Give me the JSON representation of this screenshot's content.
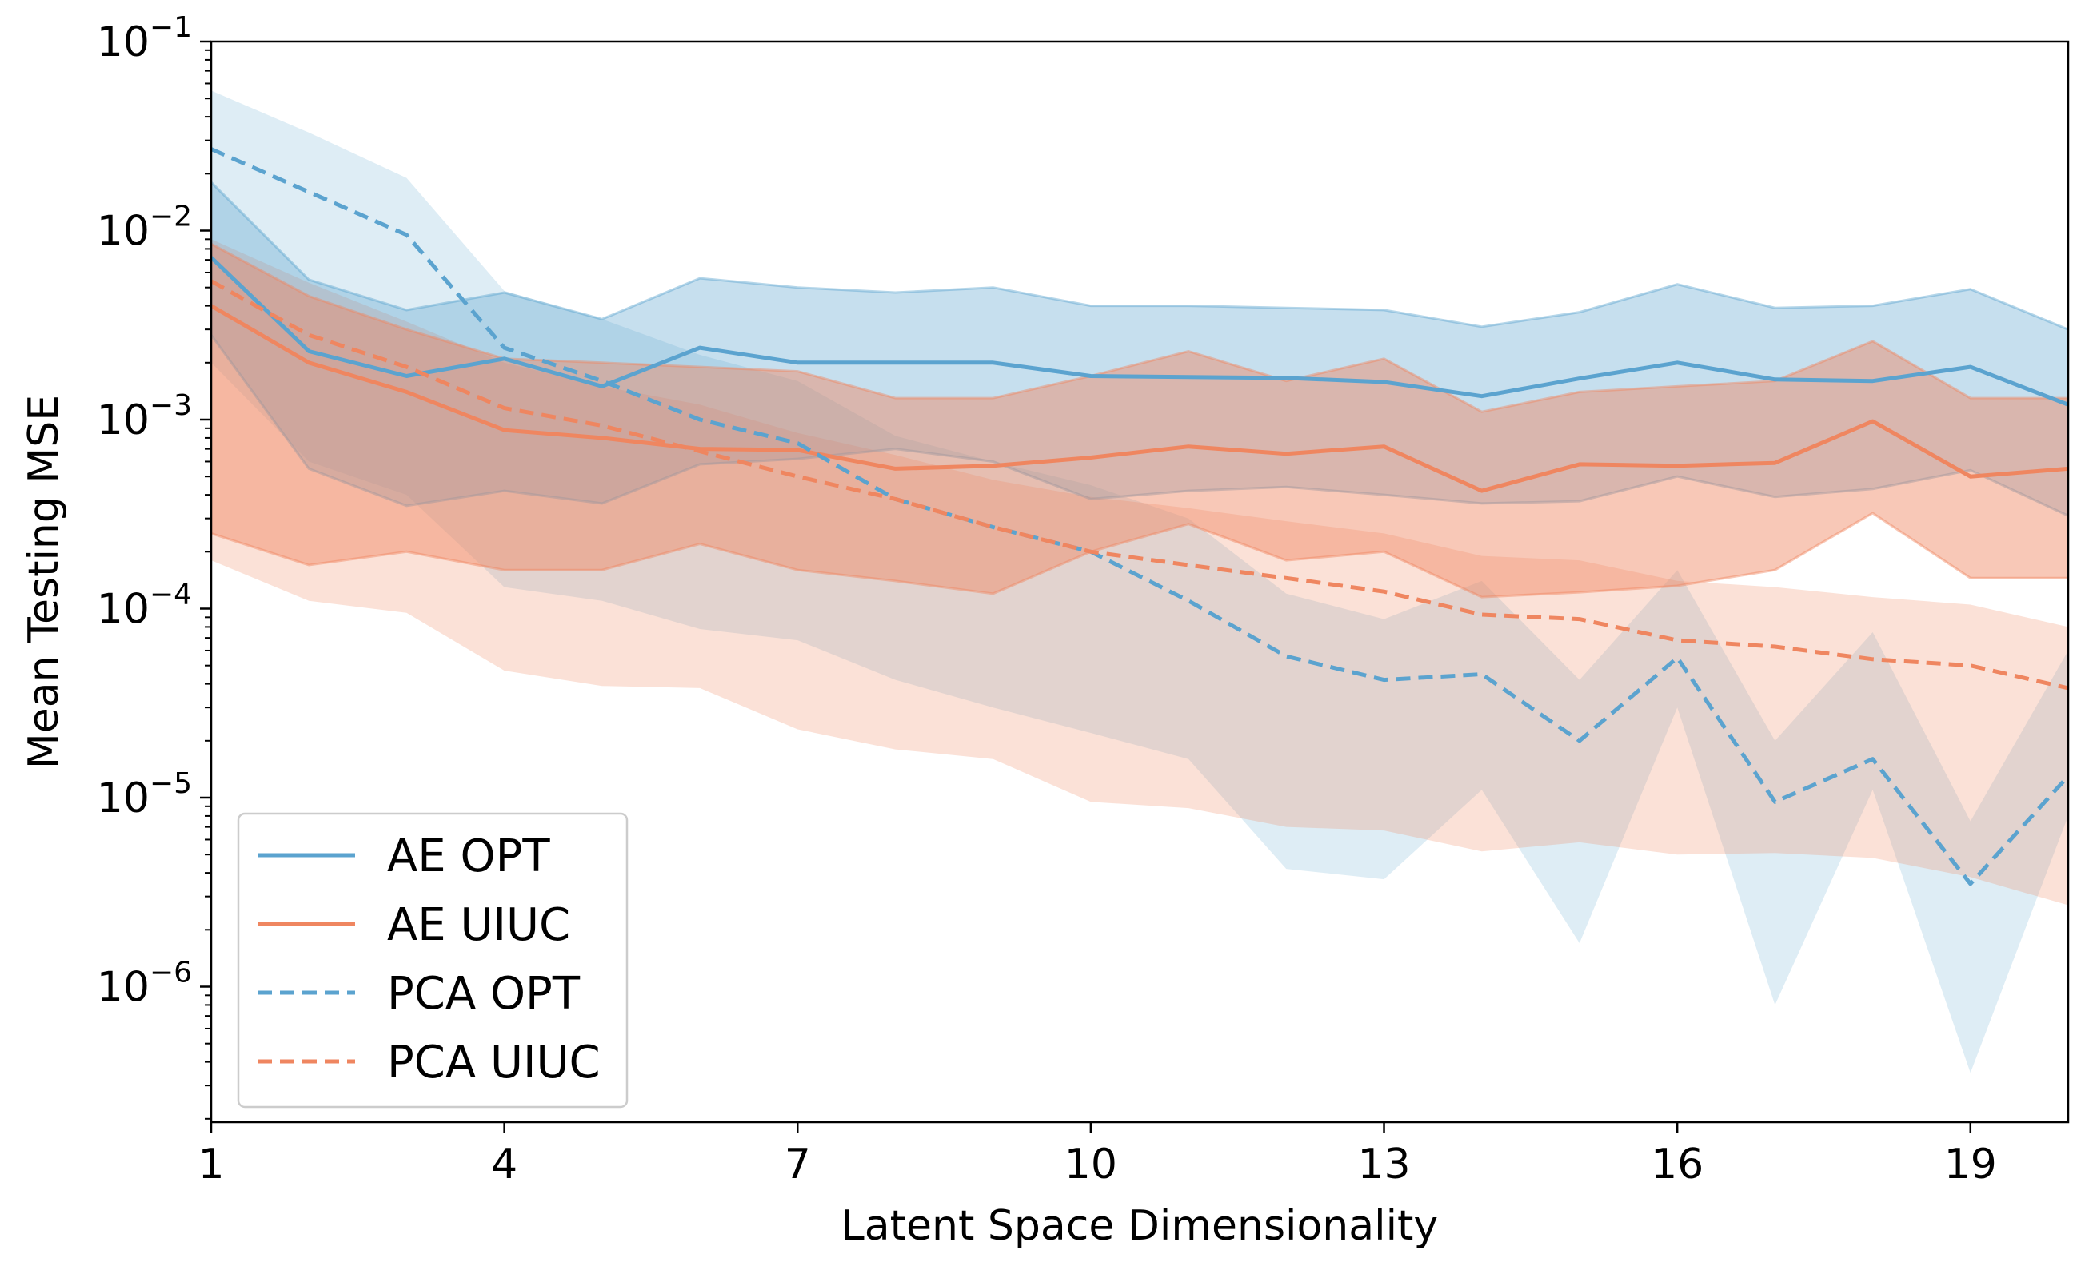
{
  "chart_data": {
    "type": "line",
    "xlabel": "Latent Space Dimensionality",
    "ylabel": "Mean Testing MSE",
    "yscale": "log",
    "xlim": [
      1,
      20
    ],
    "ylim": [
      2e-07,
      0.1
    ],
    "x_ticks": [
      1,
      4,
      7,
      10,
      13,
      16,
      19
    ],
    "y_ticks": [
      {
        "value": 1e-06,
        "base": "10",
        "exp": "−6"
      },
      {
        "value": 1e-05,
        "base": "10",
        "exp": "−5"
      },
      {
        "value": 0.0001,
        "base": "10",
        "exp": "−4"
      },
      {
        "value": 0.001,
        "base": "10",
        "exp": "−3"
      },
      {
        "value": 0.01,
        "base": "10",
        "exp": "−2"
      },
      {
        "value": 0.1,
        "base": "10",
        "exp": "−1"
      }
    ],
    "grid": false,
    "legend_position": "lower-left",
    "x": [
      1,
      2,
      3,
      4,
      5,
      6,
      7,
      8,
      9,
      10,
      11,
      12,
      13,
      14,
      15,
      16,
      17,
      18,
      19,
      20
    ],
    "series": [
      {
        "name": "AE OPT",
        "color": "#5ba3cf",
        "style": "solid",
        "band_opacity": 0.35,
        "values": [
          0.0072,
          0.0023,
          0.0017,
          0.0021,
          0.0015,
          0.0024,
          0.002,
          0.002,
          0.002,
          0.0017,
          0.00168,
          0.00166,
          0.00158,
          0.00133,
          0.00165,
          0.002,
          0.00163,
          0.0016,
          0.0019,
          0.0012
        ],
        "upper": [
          0.018,
          0.0055,
          0.0038,
          0.0047,
          0.0034,
          0.0056,
          0.005,
          0.0047,
          0.005,
          0.004,
          0.004,
          0.0039,
          0.0038,
          0.0031,
          0.0037,
          0.0052,
          0.0039,
          0.004,
          0.0049,
          0.003
        ],
        "lower": [
          0.0028,
          0.00055,
          0.00035,
          0.00042,
          0.00036,
          0.00058,
          0.00062,
          0.0007,
          0.0006,
          0.00038,
          0.00042,
          0.00044,
          0.0004,
          0.00036,
          0.00037,
          0.0005,
          0.00039,
          0.00043,
          0.00054,
          0.00031
        ]
      },
      {
        "name": "AE UIUC",
        "color": "#ef8660",
        "style": "solid",
        "band_opacity": 0.45,
        "values": [
          0.004,
          0.002,
          0.0014,
          0.00088,
          0.0008,
          0.0007,
          0.00069,
          0.00055,
          0.00057,
          0.00063,
          0.00072,
          0.00066,
          0.00072,
          0.00042,
          0.00058,
          0.00057,
          0.00059,
          0.00098,
          0.0005,
          0.00055
        ],
        "upper": [
          0.0085,
          0.0045,
          0.003,
          0.0021,
          0.002,
          0.0019,
          0.0018,
          0.0013,
          0.0013,
          0.0017,
          0.0023,
          0.0016,
          0.0021,
          0.0011,
          0.0014,
          0.0015,
          0.0016,
          0.0026,
          0.0013,
          0.0013
        ],
        "lower": [
          0.00025,
          0.00017,
          0.0002,
          0.00016,
          0.00016,
          0.00022,
          0.00016,
          0.00014,
          0.00012,
          0.0002,
          0.00028,
          0.00018,
          0.0002,
          0.000115,
          0.000122,
          0.000132,
          0.00016,
          0.00032,
          0.000145,
          0.000145
        ]
      },
      {
        "name": "PCA OPT",
        "color": "#5ba3cf",
        "style": "dashed",
        "band_opacity": 0.2,
        "values": [
          0.027,
          0.016,
          0.0095,
          0.0024,
          0.0016,
          0.001,
          0.00075,
          0.00038,
          0.00027,
          0.0002,
          0.00011,
          5.6e-05,
          4.2e-05,
          4.5e-05,
          2e-05,
          5.5e-05,
          9.5e-06,
          1.6e-05,
          3.5e-06,
          1.3e-05
        ],
        "upper": [
          0.055,
          0.033,
          0.019,
          0.0048,
          0.0034,
          0.0022,
          0.0016,
          0.00082,
          0.0006,
          0.00045,
          0.0003,
          0.00012,
          8.8e-05,
          0.00014,
          4.2e-05,
          0.00016,
          2e-05,
          7.5e-05,
          7.5e-06,
          6e-05
        ],
        "lower": [
          0.002,
          0.0006,
          0.0004,
          0.00013,
          0.00011,
          7.8e-05,
          6.8e-05,
          4.2e-05,
          3e-05,
          2.2e-05,
          1.6e-05,
          4.2e-06,
          3.7e-06,
          1.1e-05,
          1.7e-06,
          3e-05,
          8e-07,
          1.1e-05,
          3.5e-07,
          8e-06
        ]
      },
      {
        "name": "PCA UIUC",
        "color": "#ef8660",
        "style": "dashed",
        "band_opacity": 0.25,
        "values": [
          0.0054,
          0.0028,
          0.0019,
          0.00115,
          0.00093,
          0.00068,
          0.0005,
          0.00038,
          0.00027,
          0.0002,
          0.00017,
          0.000145,
          0.000123,
          9.3e-05,
          8.8e-05,
          6.8e-05,
          6.3e-05,
          5.4e-05,
          5e-05,
          3.8e-05
        ],
        "upper": [
          0.009,
          0.0053,
          0.0033,
          0.002,
          0.0015,
          0.0012,
          0.00085,
          0.00065,
          0.00048,
          0.00039,
          0.00034,
          0.00029,
          0.00025,
          0.00019,
          0.00018,
          0.00014,
          0.00013,
          0.000115,
          0.000105,
          8e-05
        ],
        "lower": [
          0.00018,
          0.00011,
          9.5e-05,
          4.7e-05,
          3.9e-05,
          3.8e-05,
          2.3e-05,
          1.8e-05,
          1.6e-05,
          9.5e-06,
          8.8e-06,
          7e-06,
          6.7e-06,
          5.2e-06,
          5.8e-06,
          5e-06,
          5.1e-06,
          4.8e-06,
          3.8e-06,
          2.7e-06
        ]
      }
    ]
  }
}
